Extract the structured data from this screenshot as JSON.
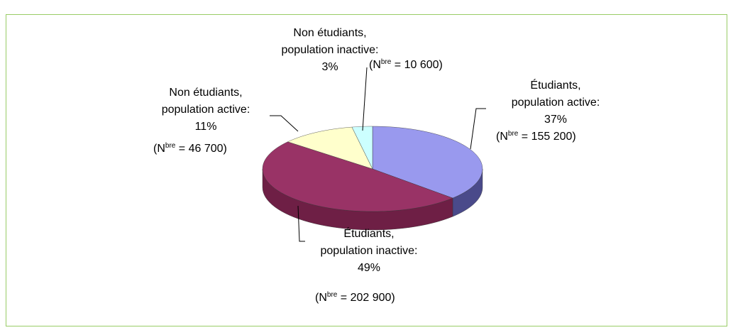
{
  "chart_data": {
    "type": "pie",
    "categories": [
      "Étudiants,\npopulation active:",
      "Étudiants,\npopulation inactive:",
      "Non étudiants,\npopulation active:",
      "Non étudiants,\npopulation inactive:"
    ],
    "values": [
      37,
      49,
      11,
      3
    ],
    "value_labels": [
      "37%",
      "49%",
      "11%",
      "3%"
    ],
    "count_labels": [
      [
        "(N",
        "bre",
        " = 155 200)"
      ],
      [
        "(N",
        "bre",
        " = 202 900)"
      ],
      [
        "(N",
        "bre",
        " = 46 700)"
      ],
      [
        "(N",
        "bre",
        " = 10 600)"
      ]
    ],
    "colors": [
      "#9999ee",
      "#993366",
      "#ffffcc",
      "#ccffff"
    ],
    "side_colors": [
      "#4a4a8a",
      "#6e1f45",
      "#b5b58a",
      "#88b5b5"
    ]
  }
}
